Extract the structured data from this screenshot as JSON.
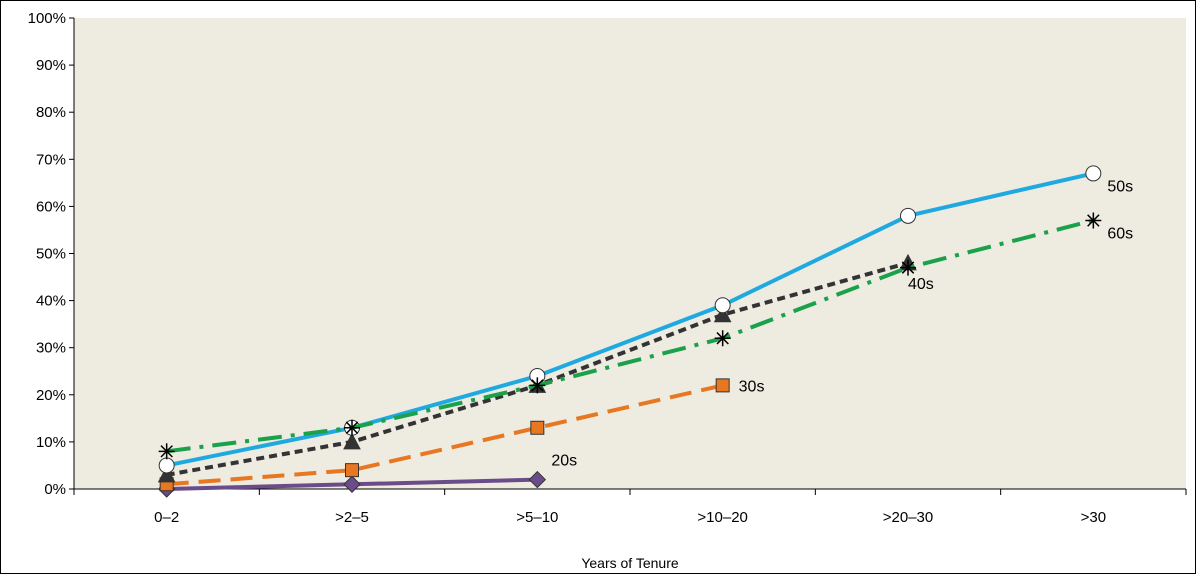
{
  "chart_data": {
    "type": "line",
    "title": "",
    "xlabel": "Years of Tenure",
    "ylabel": "",
    "ylim": [
      0,
      100
    ],
    "y_tick_labels": [
      "0%",
      "10%",
      "20%",
      "30%",
      "40%",
      "50%",
      "60%",
      "70%",
      "80%",
      "90%",
      "100%"
    ],
    "categories": [
      "0–2",
      ">2–5",
      ">5–10",
      ">10–20",
      ">20–30",
      ">30"
    ],
    "grid": false,
    "legend": "inline labels",
    "plot_background": "#eeebe1",
    "series": [
      {
        "name": "20s",
        "values": [
          0,
          1,
          2,
          null,
          null,
          null
        ],
        "color": "#6b4c8a",
        "dash": "solid",
        "marker": "diamond",
        "label_at": 2
      },
      {
        "name": "30s",
        "values": [
          1,
          4,
          13,
          22,
          null,
          null
        ],
        "color": "#e87722",
        "dash": "long-dash",
        "marker": "square",
        "label_at": 3
      },
      {
        "name": "40s",
        "values": [
          3,
          10,
          22,
          37,
          48,
          null
        ],
        "color": "#333333",
        "dash": "short-dash",
        "marker": "triangle",
        "label_at": 4
      },
      {
        "name": "50s",
        "values": [
          5,
          13,
          24,
          39,
          58,
          67
        ],
        "color": "#1fa9e1",
        "dash": "solid",
        "marker": "circle",
        "label_at": 5
      },
      {
        "name": "60s",
        "values": [
          8,
          13,
          22,
          32,
          47,
          57
        ],
        "color": "#1aa14a",
        "dash": "dash-dot",
        "marker": "asterisk",
        "label_at": 5
      }
    ]
  }
}
